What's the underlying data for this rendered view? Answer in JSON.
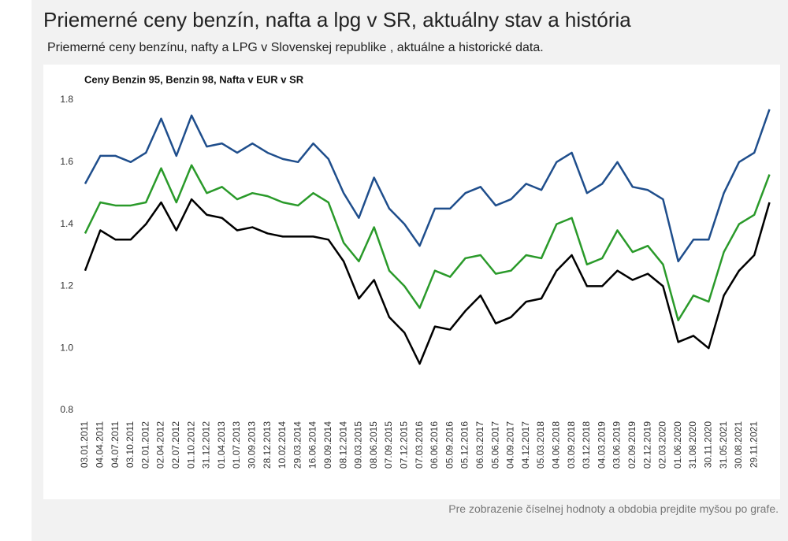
{
  "header": {
    "title": "Priemerné ceny benzín, nafta a lpg v SR, aktuálny stav a história",
    "subtitle": "Priemerné ceny benzínu, nafty a LPG v Slovenskej republike , aktuálne a historické data."
  },
  "footer": {
    "note": "Pre zobrazenie číselnej hodnoty a obdobia prejdite myšou po grafe."
  },
  "chart_data": {
    "type": "line",
    "title": "Ceny Benzin 95, Benzin 98, Nafta v EUR v SR",
    "categories": [
      "03.01.2011",
      "04.04.2011",
      "04.07.2011",
      "03.10.2011",
      "02.01.2012",
      "02.04.2012",
      "02.07.2012",
      "01.10.2012",
      "31.12.2012",
      "01.04.2013",
      "01.07.2013",
      "30.09.2013",
      "28.12.2013",
      "10.02.2014",
      "29.03.2014",
      "16.06.2014",
      "09.09.2014",
      "08.12.2014",
      "09.03.2015",
      "08.06.2015",
      "07.09.2015",
      "07.12.2015",
      "07.03.2016",
      "06.06.2016",
      "05.09.2016",
      "05.12.2016",
      "06.03.2017",
      "05.06.2017",
      "04.09.2017",
      "04.12.2017",
      "05.03.2018",
      "04.06.2018",
      "03.09.2018",
      "03.12.2018",
      "04.03.2019",
      "03.06.2019",
      "02.09.2019",
      "02.12.2019",
      "02.03.2020",
      "01.06.2020",
      "31.08.2020",
      "30.11.2020",
      "31.05.2021",
      "30.08.2021",
      "29.11.2021",
      null
    ],
    "series": [
      {
        "color": "#1f4e8c",
        "values": [
          1.53,
          1.62,
          1.62,
          1.6,
          1.63,
          1.74,
          1.62,
          1.75,
          1.65,
          1.66,
          1.63,
          1.66,
          1.63,
          1.61,
          1.6,
          1.66,
          1.61,
          1.5,
          1.42,
          1.55,
          1.45,
          1.4,
          1.33,
          1.45,
          1.45,
          1.5,
          1.52,
          1.46,
          1.48,
          1.53,
          1.51,
          1.6,
          1.63,
          1.5,
          1.53,
          1.6,
          1.52,
          1.51,
          1.48,
          1.28,
          1.35,
          1.35,
          1.5,
          1.6,
          1.63,
          1.77
        ]
      },
      {
        "color": "#2a9a2a",
        "values": [
          1.37,
          1.47,
          1.46,
          1.46,
          1.47,
          1.58,
          1.47,
          1.59,
          1.5,
          1.52,
          1.48,
          1.5,
          1.49,
          1.47,
          1.46,
          1.5,
          1.47,
          1.34,
          1.28,
          1.39,
          1.25,
          1.2,
          1.13,
          1.25,
          1.23,
          1.29,
          1.3,
          1.24,
          1.25,
          1.3,
          1.29,
          1.4,
          1.42,
          1.27,
          1.29,
          1.38,
          1.31,
          1.33,
          1.27,
          1.09,
          1.17,
          1.15,
          1.31,
          1.4,
          1.43,
          1.56
        ]
      },
      {
        "color": "#000000",
        "values": [
          1.25,
          1.38,
          1.35,
          1.35,
          1.4,
          1.47,
          1.38,
          1.48,
          1.43,
          1.42,
          1.38,
          1.39,
          1.37,
          1.36,
          1.36,
          1.36,
          1.35,
          1.28,
          1.16,
          1.22,
          1.1,
          1.05,
          0.95,
          1.07,
          1.06,
          1.12,
          1.17,
          1.08,
          1.1,
          1.15,
          1.16,
          1.25,
          1.3,
          1.2,
          1.2,
          1.25,
          1.22,
          1.24,
          1.2,
          1.02,
          1.04,
          1.0,
          1.17,
          1.25,
          1.3,
          1.47
        ]
      }
    ],
    "ylim": [
      0.8,
      1.8
    ],
    "yticks": [
      0.8,
      {
        "value": 1,
        "label": "1.0"
      },
      1.2,
      1.4,
      1.6,
      1.8
    ],
    "grid": false
  }
}
